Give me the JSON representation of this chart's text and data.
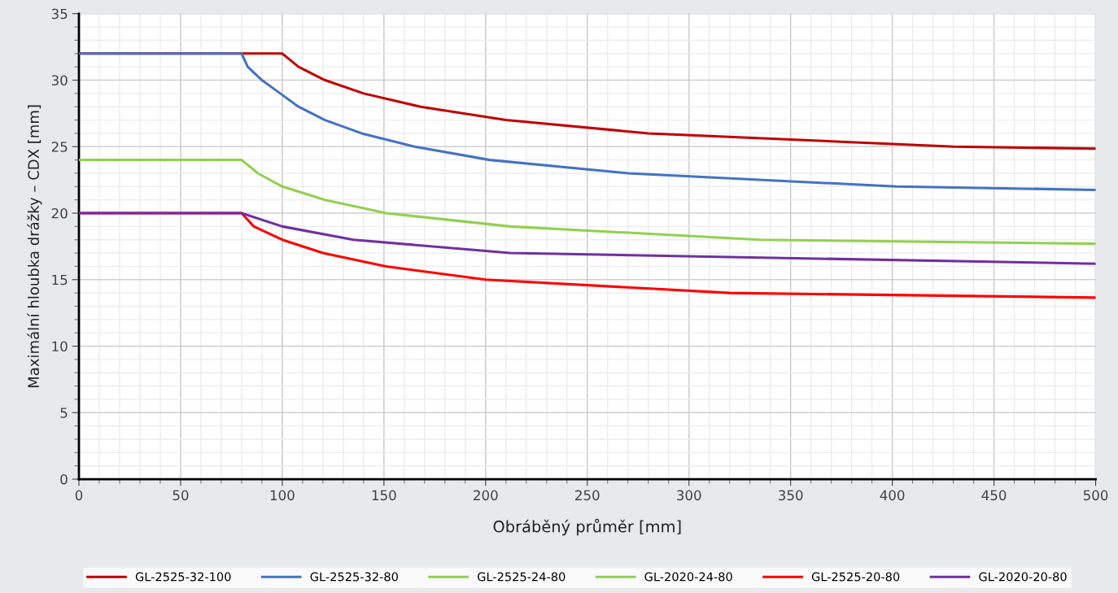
{
  "chart_data": {
    "type": "line",
    "xlabel": "Obráběný průměr [mm]",
    "ylabel": "Maximální hloubka drážky – CDX [mm]",
    "xlim": [
      0,
      500
    ],
    "xticks": [
      0,
      50,
      100,
      150,
      200,
      250,
      300,
      350,
      400,
      450,
      500
    ],
    "ylim": [
      0,
      35
    ],
    "yticks": [
      0,
      5,
      10,
      15,
      20,
      25,
      30,
      35
    ],
    "grid": true,
    "legend": "bottom",
    "marker": "none",
    "line_style": "solid",
    "series": [
      {
        "name": "GL-2525-32-100",
        "color": "#c00000",
        "x": [
          0,
          100,
          108,
          121,
          140,
          168,
          210,
          280,
          430,
          500
        ],
        "values": [
          32,
          32,
          31,
          30,
          29,
          28,
          27,
          26,
          25,
          24.85
        ]
      },
      {
        "name": "GL-2525-32-80",
        "color": "#4472c4",
        "x": [
          0,
          80,
          83,
          90,
          99,
          108,
          121,
          139,
          165,
          202,
          270,
          402,
          500
        ],
        "values": [
          32,
          32,
          31,
          30,
          29,
          28,
          27,
          26,
          25,
          24,
          23,
          22,
          21.75
        ]
      },
      {
        "name": "GL-2525-24-80",
        "color": "#92d050",
        "x": [
          0,
          80,
          88,
          100,
          121,
          151,
          212,
          335,
          500
        ],
        "values": [
          24,
          24,
          23,
          22,
          21,
          20,
          19,
          18,
          17.7
        ]
      },
      {
        "name": "GL-2020-24-80",
        "color": "#92d050",
        "values": [
          null,
          null,
          null,
          null,
          null,
          null,
          null,
          null,
          null
        ]
      },
      {
        "name": "GL-2525-20-80",
        "color": "#ff0000",
        "x": [
          0,
          80,
          86,
          100,
          120,
          151,
          200,
          320,
          500
        ],
        "values": [
          20,
          20,
          19,
          18,
          17,
          16,
          15,
          14,
          13.65
        ]
      },
      {
        "name": "GL-2020-20-80",
        "color": "#7030a0",
        "x": [
          0,
          80,
          100,
          135,
          212,
          500
        ],
        "values": [
          20,
          20,
          19,
          18,
          17,
          16.2
        ]
      }
    ]
  }
}
